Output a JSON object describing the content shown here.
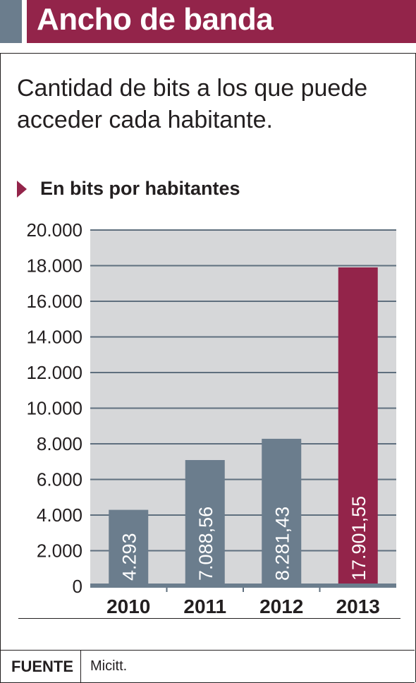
{
  "header": {
    "title": "Ancho de banda"
  },
  "subtitle": "Cantidad de bits a los que puede acceder cada habitante.",
  "unit_label": "En bits por habitantes",
  "footer": {
    "source_label": "FUENTE",
    "source_value": "Micitt."
  },
  "colors": {
    "brand": "#93244a",
    "bar": "#6b7d8d",
    "plot_bg": "#d6d7d9",
    "grid": "#5f6f7e",
    "text": "#231f20"
  },
  "chart_data": {
    "type": "bar",
    "categories": [
      "2010",
      "2011",
      "2012",
      "2013"
    ],
    "values": [
      4293,
      7088.56,
      8281.43,
      17901.55
    ],
    "value_labels": [
      "4.293",
      "7.088,56",
      "8.281,43",
      "17.901,55"
    ],
    "highlight_index": 3,
    "ylim": [
      0,
      20000
    ],
    "yticks": [
      0,
      2000,
      4000,
      6000,
      8000,
      10000,
      12000,
      14000,
      16000,
      18000,
      20000
    ],
    "ytick_labels": [
      "0",
      "2.000",
      "4.000",
      "6.000",
      "8.000",
      "10.000",
      "12.000",
      "14.000",
      "16.000",
      "18.000",
      "20.000"
    ],
    "grid": true
  }
}
